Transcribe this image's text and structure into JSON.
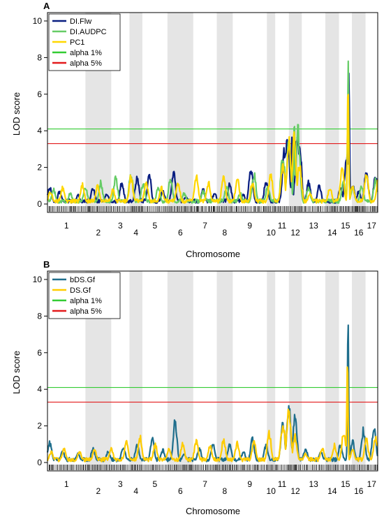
{
  "chart_data": [
    {
      "type": "line",
      "panel_label": "A",
      "xlabel": "Chromosome",
      "ylabel": "LOD score",
      "ylim": [
        0,
        10
      ],
      "yticks": [
        0,
        2,
        4,
        6,
        8,
        10
      ],
      "chromosomes": [
        "1",
        "2",
        "3",
        "4",
        "5",
        "6",
        "7",
        "8",
        "9",
        "10",
        "11",
        "12",
        "13",
        "14",
        "15",
        "16",
        "17"
      ],
      "chromosome_widths": [
        50,
        34,
        24,
        17,
        33,
        34,
        31,
        21,
        45,
        11,
        18,
        17,
        31,
        18,
        17,
        18,
        16
      ],
      "legend_position": "top-left",
      "thresholds": [
        {
          "name": "alpha 1%",
          "value": 4.1,
          "color": "#33cc33"
        },
        {
          "name": "alpha 5%",
          "value": 3.3,
          "color": "#e31a1c"
        }
      ],
      "series": [
        {
          "name": "DI.Flw",
          "color": "#081d80",
          "peaks": [
            [
              3,
              0.9
            ],
            [
              16,
              0.7
            ],
            [
              40,
              0.5
            ],
            [
              60,
              0.9
            ],
            [
              78,
              0.6
            ],
            [
              98,
              1.2
            ],
            [
              118,
              1.5
            ],
            [
              134,
              1.6
            ],
            [
              152,
              0.7
            ],
            [
              166,
              1.8
            ],
            [
              182,
              0.4
            ],
            [
              205,
              0.8
            ],
            [
              220,
              0.6
            ],
            [
              240,
              1.1
            ],
            [
              258,
              0.5
            ],
            [
              268,
              2.0
            ],
            [
              288,
              1.3
            ],
            [
              312,
              3.0
            ],
            [
              316,
              4.0
            ],
            [
              322,
              4.1
            ],
            [
              329,
              3.8
            ],
            [
              332,
              3.6
            ],
            [
              344,
              1.2
            ],
            [
              358,
              1.0
            ],
            [
              386,
              0.9
            ],
            [
              394,
              2.8
            ],
            [
              397,
              7.8
            ],
            [
              402,
              1.0
            ],
            [
              410,
              0.7
            ],
            [
              420,
              1.8
            ],
            [
              432,
              1.5
            ],
            [
              442,
              2.0
            ],
            [
              452,
              3.3
            ],
            [
              460,
              3.1
            ],
            [
              470,
              2.6
            ],
            [
              478,
              1.5
            ],
            [
              498,
              1.9
            ],
            [
              511,
              3.3
            ],
            [
              514,
              4.8
            ],
            [
              518,
              2.2
            ],
            [
              530,
              1.2
            ],
            [
              556,
              0.5
            ],
            [
              566,
              2.3
            ],
            [
              577,
              1.0
            ],
            [
              598,
              1.5
            ],
            [
              612,
              1.8
            ],
            [
              626,
              2.5
            ],
            [
              636,
              3.7
            ],
            [
              640,
              6.0
            ],
            [
              642,
              1.5
            ],
            [
              650,
              0.8
            ]
          ]
        },
        {
          "name": "DI.AUDPC",
          "color": "#66cc66",
          "peaks": [
            [
              8,
              0.8
            ],
            [
              30,
              0.6
            ],
            [
              50,
              1.0
            ],
            [
              70,
              1.2
            ],
            [
              90,
              1.5
            ],
            [
              110,
              1.7
            ],
            [
              126,
              1.2
            ],
            [
              146,
              0.9
            ],
            [
              162,
              1.5
            ],
            [
              180,
              0.6
            ],
            [
              205,
              0.7
            ],
            [
              236,
              1.0
            ],
            [
              254,
              0.6
            ],
            [
              272,
              1.7
            ],
            [
              290,
              1.0
            ],
            [
              310,
              2.8
            ],
            [
              318,
              3.4
            ],
            [
              325,
              4.7
            ],
            [
              330,
              4.0
            ],
            [
              344,
              0.9
            ],
            [
              390,
              1.2
            ],
            [
              396,
              7.3
            ],
            [
              402,
              0.9
            ],
            [
              414,
              1.0
            ],
            [
              432,
              1.3
            ],
            [
              448,
              2.6
            ],
            [
              460,
              2.4
            ],
            [
              472,
              1.4
            ],
            [
              492,
              1.0
            ],
            [
              504,
              2.5
            ],
            [
              512,
              3.8
            ],
            [
              516,
              1.2
            ],
            [
              530,
              0.8
            ],
            [
              564,
              1.6
            ],
            [
              590,
              1.0
            ],
            [
              612,
              1.5
            ],
            [
              626,
              2.0
            ],
            [
              634,
              3.0
            ],
            [
              640,
              5.8
            ],
            [
              642,
              1.2
            ],
            [
              650,
              0.6
            ]
          ]
        },
        {
          "name": "PC1",
          "color": "#ffd700",
          "peaks": [
            [
              4,
              0.7
            ],
            [
              20,
              0.9
            ],
            [
              46,
              1.1
            ],
            [
              66,
              1.0
            ],
            [
              86,
              0.8
            ],
            [
              110,
              1.5
            ],
            [
              130,
              1.2
            ],
            [
              150,
              0.9
            ],
            [
              172,
              1.2
            ],
            [
              196,
              1.5
            ],
            [
              212,
              1.2
            ],
            [
              232,
              1.6
            ],
            [
              250,
              1.4
            ],
            [
              270,
              1.2
            ],
            [
              294,
              1.7
            ],
            [
              310,
              2.3
            ],
            [
              318,
              3.4
            ],
            [
              325,
              3.6
            ],
            [
              332,
              2.3
            ],
            [
              346,
              0.6
            ],
            [
              372,
              0.9
            ],
            [
              388,
              2.0
            ],
            [
              396,
              6.9
            ],
            [
              402,
              1.0
            ],
            [
              420,
              1.6
            ],
            [
              436,
              1.5
            ],
            [
              446,
              2.8
            ],
            [
              458,
              3.2
            ],
            [
              470,
              2.6
            ],
            [
              490,
              1.4
            ],
            [
              504,
              2.3
            ],
            [
              513,
              4.4
            ],
            [
              518,
              1.3
            ],
            [
              536,
              0.9
            ],
            [
              560,
              1.8
            ],
            [
              578,
              0.9
            ],
            [
              600,
              1.2
            ],
            [
              616,
              1.9
            ],
            [
              628,
              2.8
            ],
            [
              634,
              4.4
            ],
            [
              640,
              5.8
            ],
            [
              644,
              1.3
            ],
            [
              650,
              0.8
            ]
          ]
        }
      ]
    },
    {
      "type": "line",
      "panel_label": "B",
      "xlabel": "Chromosome",
      "ylabel": "LOD score",
      "ylim": [
        0,
        10
      ],
      "yticks": [
        0,
        2,
        4,
        6,
        8,
        10
      ],
      "chromosomes": [
        "1",
        "2",
        "3",
        "4",
        "5",
        "6",
        "7",
        "8",
        "9",
        "10",
        "11",
        "12",
        "13",
        "14",
        "15",
        "16",
        "17"
      ],
      "chromosome_widths": [
        50,
        34,
        24,
        17,
        33,
        34,
        31,
        21,
        45,
        11,
        18,
        17,
        31,
        18,
        17,
        18,
        16
      ],
      "legend_position": "top-left",
      "thresholds": [
        {
          "name": "alpha 1%",
          "value": 4.1,
          "color": "#33cc33"
        },
        {
          "name": "alpha 5%",
          "value": 3.3,
          "color": "#e31a1c"
        }
      ],
      "series": [
        {
          "name": "bDS.Gf",
          "color": "#1f6e8c",
          "peaks": [
            [
              3,
              1.1
            ],
            [
              20,
              0.6
            ],
            [
              40,
              0.5
            ],
            [
              60,
              0.8
            ],
            [
              80,
              0.6
            ],
            [
              100,
              0.9
            ],
            [
              118,
              1.0
            ],
            [
              138,
              1.3
            ],
            [
              152,
              0.7
            ],
            [
              168,
              2.2
            ],
            [
              180,
              0.5
            ],
            [
              200,
              0.8
            ],
            [
              218,
              1.1
            ],
            [
              240,
              1.0
            ],
            [
              258,
              0.6
            ],
            [
              270,
              1.3
            ],
            [
              288,
              1.0
            ],
            [
              310,
              2.3
            ],
            [
              318,
              3.0
            ],
            [
              326,
              2.6
            ],
            [
              340,
              0.8
            ],
            [
              360,
              0.6
            ],
            [
              386,
              1.0
            ],
            [
              396,
              7.3
            ],
            [
              402,
              1.2
            ],
            [
              416,
              1.8
            ],
            [
              430,
              2.0
            ],
            [
              442,
              2.7
            ],
            [
              452,
              3.2
            ],
            [
              460,
              3.3
            ],
            [
              470,
              2.5
            ],
            [
              482,
              2.5
            ],
            [
              496,
              2.6
            ],
            [
              505,
              2.7
            ],
            [
              514,
              3.8
            ],
            [
              518,
              2.0
            ],
            [
              530,
              1.5
            ],
            [
              548,
              1.8
            ],
            [
              560,
              1.3
            ],
            [
              580,
              0.8
            ],
            [
              600,
              1.0
            ],
            [
              620,
              0.9
            ],
            [
              632,
              1.5
            ],
            [
              640,
              7.0
            ],
            [
              643,
              1.2
            ],
            [
              650,
              0.7
            ]
          ]
        },
        {
          "name": "DS.Gf",
          "color": "#ffcc00",
          "peaks": [
            [
              5,
              0.6
            ],
            [
              22,
              0.8
            ],
            [
              42,
              0.6
            ],
            [
              62,
              0.7
            ],
            [
              84,
              0.8
            ],
            [
              104,
              1.1
            ],
            [
              122,
              1.4
            ],
            [
              142,
              1.0
            ],
            [
              160,
              0.8
            ],
            [
              178,
              1.0
            ],
            [
              196,
              1.2
            ],
            [
              214,
              0.9
            ],
            [
              232,
              1.3
            ],
            [
              250,
              1.1
            ],
            [
              272,
              1.2
            ],
            [
              292,
              1.6
            ],
            [
              310,
              2.3
            ],
            [
              318,
              2.9
            ],
            [
              326,
              1.5
            ],
            [
              340,
              0.5
            ],
            [
              362,
              0.8
            ],
            [
              378,
              1.0
            ],
            [
              390,
              1.6
            ],
            [
              395,
              5.6
            ],
            [
              402,
              0.7
            ],
            [
              420,
              1.3
            ],
            [
              432,
              1.5
            ],
            [
              442,
              1.2
            ],
            [
              460,
              0.9
            ],
            [
              480,
              0.7
            ],
            [
              496,
              0.8
            ],
            [
              512,
              1.3
            ],
            [
              530,
              0.6
            ],
            [
              556,
              0.5
            ],
            [
              576,
              0.4
            ],
            [
              600,
              0.5
            ],
            [
              620,
              0.8
            ],
            [
              634,
              2.2
            ],
            [
              640,
              4.2
            ],
            [
              643,
              0.8
            ],
            [
              650,
              0.5
            ]
          ]
        }
      ]
    }
  ]
}
